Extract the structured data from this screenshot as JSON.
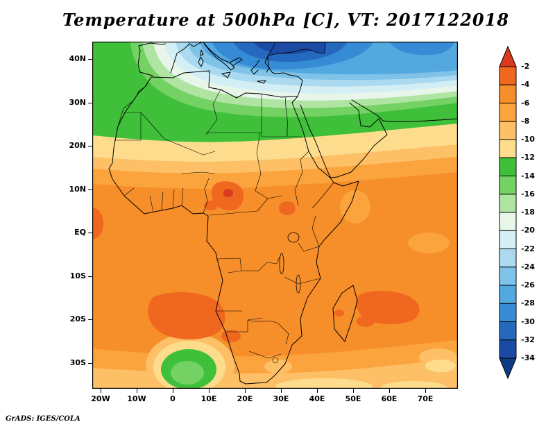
{
  "title": "Temperature at 500hPa [C], VT: 2017122018",
  "attribution": "GrADS: IGES/COLA",
  "axes": {
    "lat_labels": [
      "40N",
      "30N",
      "20N",
      "10N",
      "EQ",
      "10S",
      "20S",
      "30S"
    ],
    "lon_labels": [
      "20W",
      "10W",
      "0",
      "10E",
      "20E",
      "30E",
      "40E",
      "50E",
      "60E",
      "70E"
    ]
  },
  "colorbar": {
    "labels": [
      "-2",
      "-4",
      "-6",
      "-8",
      "-10",
      "-12",
      "-14",
      "-16",
      "-18",
      "-20",
      "-22",
      "-24",
      "-26",
      "-28",
      "-30",
      "-32",
      "-34"
    ],
    "colors": [
      "#f0671f",
      "#f68e2a",
      "#fba33c",
      "#fdc066",
      "#fddd8d",
      "#3fbf3a",
      "#74d163",
      "#b0e4a3",
      "#e8f6ea",
      "#d4eef5",
      "#abdaf0",
      "#7fc3e8",
      "#54a8e0",
      "#368cd4",
      "#2569be",
      "#1a4aa3"
    ],
    "arrow_top_color": "#d93a20",
    "arrow_bottom_color": "#0f3a88"
  },
  "chart_data": {
    "type": "heatmap",
    "title": "Temperature at 500hPa [C], VT: 2017122018",
    "variable": "Temperature",
    "level": "500hPa",
    "units": "C",
    "valid_time": "2017122018",
    "x_tick_labels": [
      "20W",
      "10W",
      "0",
      "10E",
      "20E",
      "30E",
      "40E",
      "50E",
      "60E",
      "70E"
    ],
    "y_tick_labels": [
      "40N",
      "30N",
      "20N",
      "10N",
      "EQ",
      "10S",
      "20S",
      "30S"
    ],
    "colorbar_values": [
      -2,
      -4,
      -6,
      -8,
      -10,
      -12,
      -14,
      -16,
      -18,
      -20,
      -22,
      -24,
      -26,
      -28,
      -30,
      -32,
      -34
    ],
    "colorbar_orientation": "vertical-right",
    "legend_position": "right"
  }
}
